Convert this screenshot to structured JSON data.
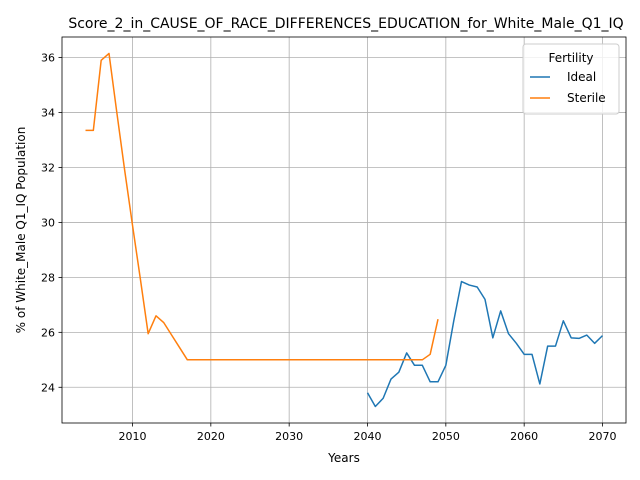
{
  "chart_data": {
    "type": "line",
    "title": "Score_2_in_CAUSE_OF_RACE_DIFFERENCES_EDUCATION_for_White_Male_Q1_IQ",
    "xlabel": "Years",
    "ylabel": "% of White_Male Q1_IQ Population",
    "xlim": [
      2001,
      2073
    ],
    "ylim": [
      22.7,
      36.75
    ],
    "xticks": [
      2010,
      2020,
      2030,
      2040,
      2050,
      2060,
      2070
    ],
    "yticks": [
      24,
      26,
      28,
      30,
      32,
      34,
      36
    ],
    "grid": true,
    "legend": {
      "title": "Fertility",
      "placement": "top-right"
    },
    "series": [
      {
        "name": "Ideal",
        "color": "#1f77b4",
        "x": [
          2040,
          2041,
          2042,
          2043,
          2044,
          2045,
          2046,
          2047,
          2048,
          2049,
          2050,
          2051,
          2052,
          2053,
          2054,
          2055,
          2056,
          2057,
          2058,
          2059,
          2060,
          2061,
          2062,
          2063,
          2064,
          2065,
          2066,
          2067,
          2068,
          2069,
          2070
        ],
        "y": [
          23.8,
          23.3,
          23.6,
          24.3,
          24.55,
          25.25,
          24.8,
          24.8,
          24.2,
          24.2,
          24.8,
          26.4,
          27.85,
          27.72,
          27.65,
          27.2,
          25.8,
          26.78,
          25.95,
          25.6,
          25.2,
          25.2,
          24.12,
          25.5,
          25.5,
          26.42,
          25.8,
          25.78,
          25.9,
          25.6,
          25.88
        ]
      },
      {
        "name": "Sterile",
        "color": "#ff7f0e",
        "x": [
          2004,
          2005,
          2006,
          2007,
          2008,
          2009,
          2010,
          2011,
          2012,
          2013,
          2014,
          2015,
          2016,
          2017,
          2018,
          2019,
          2020,
          2021,
          2022,
          2023,
          2024,
          2025,
          2026,
          2027,
          2028,
          2029,
          2030,
          2031,
          2032,
          2033,
          2034,
          2035,
          2036,
          2037,
          2038,
          2039,
          2040,
          2041,
          2042,
          2043,
          2044,
          2045,
          2046,
          2047,
          2048,
          2049
        ],
        "y": [
          33.35,
          33.35,
          35.9,
          36.15,
          34.0,
          31.9,
          29.9,
          27.95,
          25.95,
          26.6,
          26.35,
          25.9,
          25.45,
          25.0,
          25.0,
          25.0,
          25.0,
          25.0,
          25.0,
          25.0,
          25.0,
          25.0,
          25.0,
          25.0,
          25.0,
          25.0,
          25.0,
          25.0,
          25.0,
          25.0,
          25.0,
          25.0,
          25.0,
          25.0,
          25.0,
          25.0,
          25.0,
          25.0,
          25.0,
          25.0,
          25.0,
          25.0,
          25.0,
          25.0,
          25.2,
          26.48
        ]
      }
    ]
  }
}
